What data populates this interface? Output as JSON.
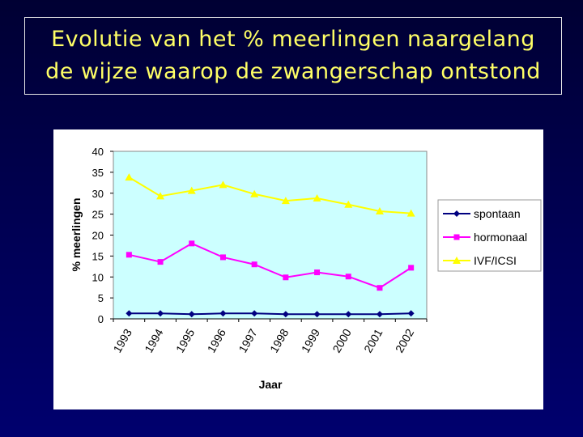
{
  "slide": {
    "title_line1": "Evolutie van het % meerlingen naargelang",
    "title_line2": "de wijze waarop de zwangerschap ontstond",
    "title_color": "#ffff66",
    "background_color": "#000044"
  },
  "chart_data": {
    "type": "line",
    "title": "",
    "xlabel": "Jaar",
    "ylabel": "% meerlingen",
    "ylim": [
      0,
      40
    ],
    "yticks": [
      0,
      5,
      10,
      15,
      20,
      25,
      30,
      35,
      40
    ],
    "categories": [
      "1993",
      "1994",
      "1995",
      "1996",
      "1997",
      "1998",
      "1999",
      "2000",
      "2001",
      "2002"
    ],
    "grid": false,
    "plot_background": "#ccffff",
    "legend_position": "right",
    "series": [
      {
        "name": "spontaan",
        "color": "#000080",
        "marker": "diamond",
        "values": [
          1.3,
          1.3,
          1.1,
          1.3,
          1.3,
          1.1,
          1.1,
          1.1,
          1.1,
          1.3
        ]
      },
      {
        "name": "hormonaal",
        "color": "#ff00ff",
        "marker": "square",
        "values": [
          15.3,
          13.6,
          18.0,
          14.7,
          13.0,
          9.9,
          11.1,
          10.1,
          7.4,
          12.2
        ]
      },
      {
        "name": "IVF/ICSI",
        "color": "#ffff00",
        "marker": "triangle",
        "values": [
          33.8,
          29.3,
          30.6,
          32.0,
          29.8,
          28.2,
          28.8,
          27.3,
          25.7,
          25.2
        ]
      }
    ]
  }
}
